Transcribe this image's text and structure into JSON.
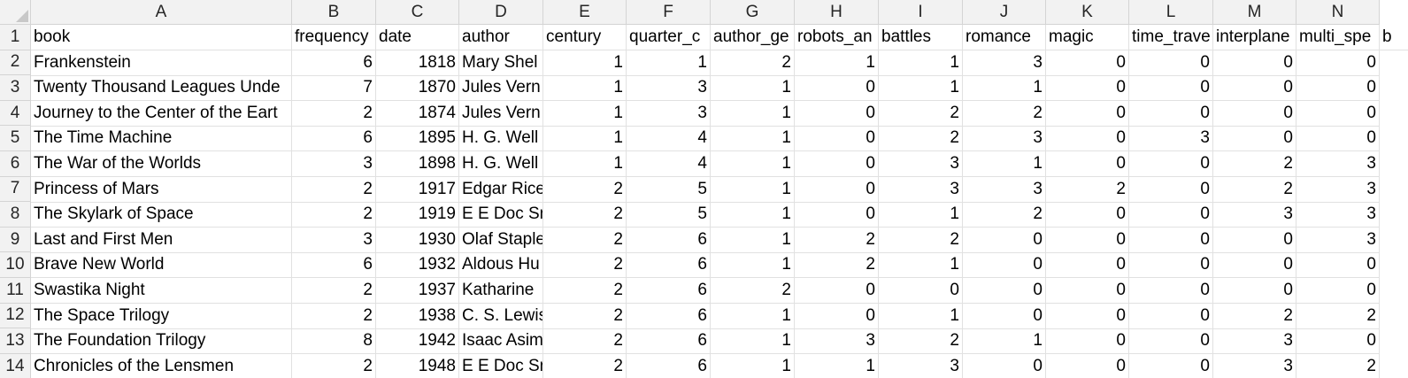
{
  "columns": [
    "A",
    "B",
    "C",
    "D",
    "E",
    "F",
    "G",
    "H",
    "I",
    "J",
    "K",
    "L",
    "M",
    "N"
  ],
  "row_numbers": [
    "1",
    "2",
    "3",
    "4",
    "5",
    "6",
    "7",
    "8",
    "9",
    "10",
    "11",
    "12",
    "13",
    "14"
  ],
  "header": [
    "book",
    "frequency",
    "date",
    "author",
    "century",
    "quarter_c",
    "author_ge",
    "robots_an",
    "battles",
    "romance",
    "magic",
    "time_trave",
    "interplane",
    "multi_spe"
  ],
  "overflow_header": "b",
  "rows": [
    [
      "Frankenstein",
      "6",
      "1818",
      "Mary Shel",
      "1",
      "1",
      "2",
      "1",
      "1",
      "3",
      "0",
      "0",
      "0",
      "0"
    ],
    [
      "Twenty Thousand Leagues Unde",
      "7",
      "1870",
      "Jules Vern",
      "1",
      "3",
      "1",
      "0",
      "1",
      "1",
      "0",
      "0",
      "0",
      "0"
    ],
    [
      "Journey to the Center of the Eart",
      "2",
      "1874",
      "Jules Vern",
      "1",
      "3",
      "1",
      "0",
      "2",
      "2",
      "0",
      "0",
      "0",
      "0"
    ],
    [
      "The Time Machine",
      "6",
      "1895",
      "H. G. Well",
      "1",
      "4",
      "1",
      "0",
      "2",
      "3",
      "0",
      "3",
      "0",
      "0"
    ],
    [
      "The War of the Worlds",
      "3",
      "1898",
      "H. G. Well",
      "1",
      "4",
      "1",
      "0",
      "3",
      "1",
      "0",
      "0",
      "2",
      "3"
    ],
    [
      "Princess of Mars",
      "2",
      "1917",
      "Edgar Rice",
      "2",
      "5",
      "1",
      "0",
      "3",
      "3",
      "2",
      "0",
      "2",
      "3"
    ],
    [
      "The Skylark of Space",
      "2",
      "1919",
      "E E Doc Sn",
      "2",
      "5",
      "1",
      "0",
      "1",
      "2",
      "0",
      "0",
      "3",
      "3"
    ],
    [
      "Last and First Men",
      "3",
      "1930",
      "Olaf Staple",
      "2",
      "6",
      "1",
      "2",
      "2",
      "0",
      "0",
      "0",
      "0",
      "3"
    ],
    [
      "Brave New World",
      "6",
      "1932",
      "Aldous Hu",
      "2",
      "6",
      "1",
      "2",
      "1",
      "0",
      "0",
      "0",
      "0",
      "0"
    ],
    [
      "Swastika Night",
      "2",
      "1937",
      "Katharine",
      "2",
      "6",
      "2",
      "0",
      "0",
      "0",
      "0",
      "0",
      "0",
      "0"
    ],
    [
      "The Space Trilogy",
      "2",
      "1938",
      "C. S. Lewis",
      "2",
      "6",
      "1",
      "0",
      "1",
      "0",
      "0",
      "0",
      "2",
      "2"
    ],
    [
      "The Foundation Trilogy",
      "8",
      "1942",
      "Isaac Asim",
      "2",
      "6",
      "1",
      "3",
      "2",
      "1",
      "0",
      "0",
      "3",
      "0"
    ],
    [
      "Chronicles of the Lensmen",
      "2",
      "1948",
      "E E Doc Sn",
      "2",
      "6",
      "1",
      "1",
      "3",
      "0",
      "0",
      "0",
      "3",
      "2"
    ]
  ]
}
